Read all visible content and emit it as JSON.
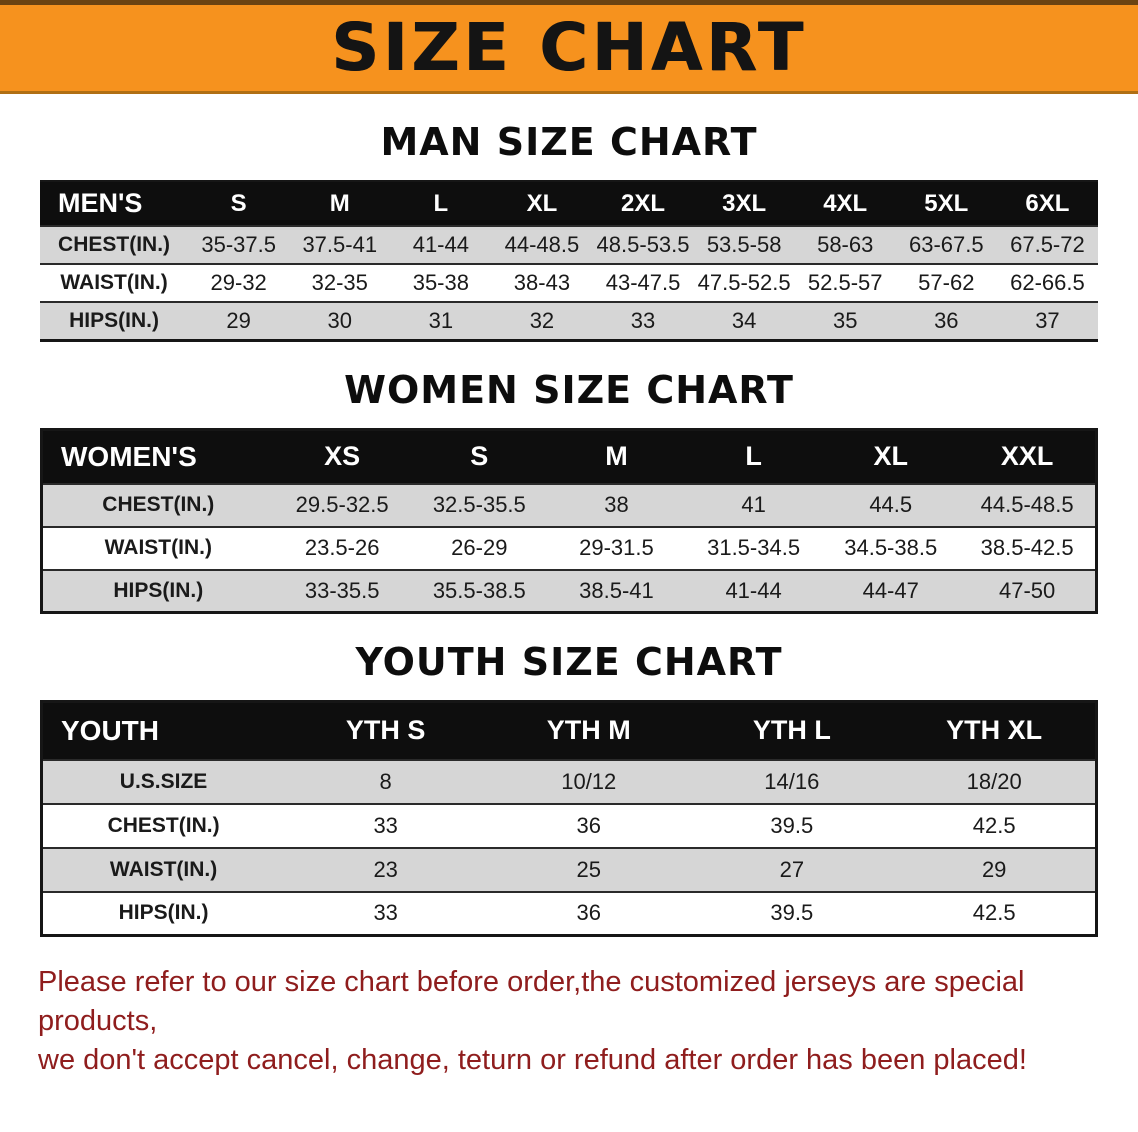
{
  "banner": {
    "title": "SIZE CHART"
  },
  "colors": {
    "banner_bg": "#F6921E",
    "header_row_bg": "#0E0E0E",
    "shaded_row_bg": "#D6D6D6",
    "notice_text": "#8F1D1D"
  },
  "sections": [
    {
      "id": "men",
      "title": "MAN SIZE CHART",
      "table": {
        "header": [
          "MEN'S",
          "S",
          "M",
          "L",
          "XL",
          "2XL",
          "3XL",
          "4XL",
          "5XL",
          "6XL"
        ],
        "rows": [
          {
            "label": "CHEST(IN.)",
            "values": [
              "35-37.5",
              "37.5-41",
              "41-44",
              "44-48.5",
              "48.5-53.5",
              "53.5-58",
              "58-63",
              "63-67.5",
              "67.5-72"
            ]
          },
          {
            "label": "WAIST(IN.)",
            "values": [
              "29-32",
              "32-35",
              "35-38",
              "38-43",
              "43-47.5",
              "47.5-52.5",
              "52.5-57",
              "57-62",
              "62-66.5"
            ]
          },
          {
            "label": "HIPS(IN.)",
            "values": [
              "29",
              "30",
              "31",
              "32",
              "33",
              "34",
              "35",
              "36",
              "37"
            ]
          }
        ]
      }
    },
    {
      "id": "women",
      "title": "WOMEN SIZE CHART",
      "table": {
        "header": [
          "WOMEN'S",
          "XS",
          "S",
          "M",
          "L",
          "XL",
          "XXL"
        ],
        "rows": [
          {
            "label": "CHEST(IN.)",
            "values": [
              "29.5-32.5",
              "32.5-35.5",
              "38",
              "41",
              "44.5",
              "44.5-48.5"
            ]
          },
          {
            "label": "WAIST(IN.)",
            "values": [
              "23.5-26",
              "26-29",
              "29-31.5",
              "31.5-34.5",
              "34.5-38.5",
              "38.5-42.5"
            ]
          },
          {
            "label": "HIPS(IN.)",
            "values": [
              "33-35.5",
              "35.5-38.5",
              "38.5-41",
              "41-44",
              "44-47",
              "47-50"
            ]
          }
        ]
      }
    },
    {
      "id": "youth",
      "title": "YOUTH SIZE CHART",
      "table": {
        "header": [
          "YOUTH",
          "YTH S",
          "YTH M",
          "YTH L",
          "YTH XL"
        ],
        "rows": [
          {
            "label": "U.S.SIZE",
            "values": [
              "8",
              "10/12",
              "14/16",
              "18/20"
            ]
          },
          {
            "label": "CHEST(IN.)",
            "values": [
              "33",
              "36",
              "39.5",
              "42.5"
            ]
          },
          {
            "label": "WAIST(IN.)",
            "values": [
              "23",
              "25",
              "27",
              "29"
            ]
          },
          {
            "label": "HIPS(IN.)",
            "values": [
              "33",
              "36",
              "39.5",
              "42.5"
            ]
          }
        ]
      }
    }
  ],
  "notice": {
    "lines": [
      "Please refer to our size chart before order,the customized jerseys are special products,",
      "we don't accept cancel, change, teturn or refund after order has been placed!"
    ]
  }
}
